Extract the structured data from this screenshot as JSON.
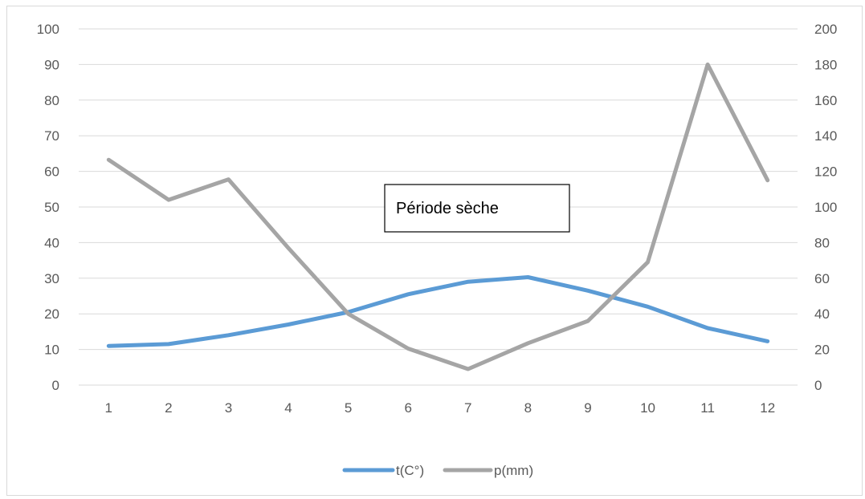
{
  "chart_data": {
    "type": "line",
    "title": "",
    "xlabel": "",
    "ylabel": "",
    "y2label": "",
    "categories": [
      "1",
      "2",
      "3",
      "4",
      "5",
      "6",
      "7",
      "8",
      "9",
      "10",
      "11",
      "12"
    ],
    "series": [
      {
        "name": "t(C°)",
        "axis": "left",
        "color": "#5b9bd5",
        "values": [
          11,
          11.5,
          14,
          17,
          20.5,
          25.5,
          29,
          30.3,
          26.5,
          22,
          16,
          12.3
        ]
      },
      {
        "name": "p(mm)",
        "axis": "right",
        "color": "#a5a5a5",
        "values": [
          126.5,
          104,
          115.5,
          77,
          40,
          20.5,
          9,
          23.5,
          36,
          69,
          180,
          115
        ]
      }
    ],
    "ylim": [
      0,
      100
    ],
    "y2lim": [
      0,
      200
    ],
    "yticks": [
      "0",
      "10",
      "20",
      "30",
      "40",
      "50",
      "60",
      "70",
      "80",
      "90",
      "100"
    ],
    "y2ticks": [
      "0",
      "20",
      "40",
      "60",
      "80",
      "100",
      "120",
      "140",
      "160",
      "180",
      "200"
    ],
    "grid": true,
    "legend_position": "bottom",
    "annotation": {
      "text": "Période sèche"
    }
  }
}
